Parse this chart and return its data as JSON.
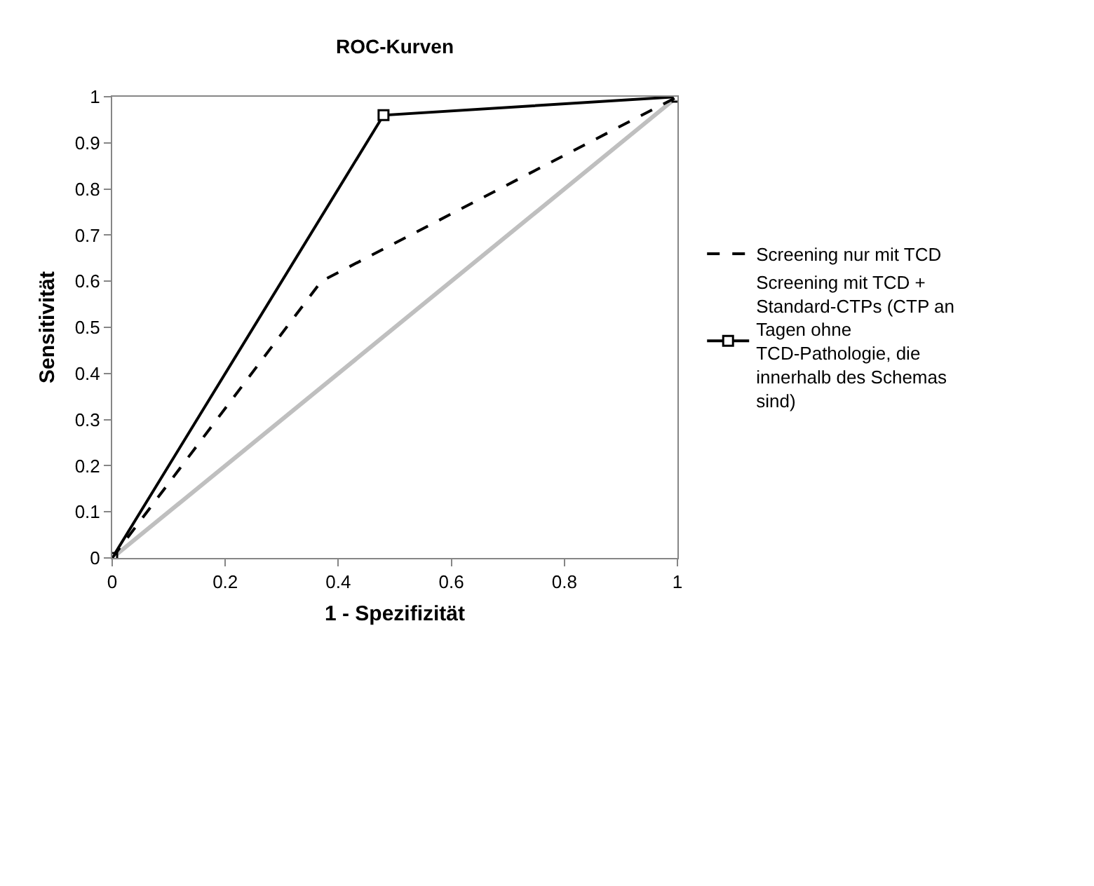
{
  "chart_data": {
    "type": "line",
    "title": "ROC-Kurven",
    "xlabel": "1 - Spezifizität",
    "ylabel": "Sensitivität",
    "xlim": [
      0,
      1
    ],
    "xticks": [
      0,
      0.2,
      0.4,
      0.6,
      0.8,
      1
    ],
    "ylim": [
      0,
      1
    ],
    "yticks": [
      0,
      0.1,
      0.2,
      0.3,
      0.4,
      0.5,
      0.6,
      0.7,
      0.8,
      0.9,
      1
    ],
    "grid": false,
    "legend": "right",
    "series": [
      {
        "color": "#bfbfbf",
        "x": [
          0,
          1
        ],
        "values": [
          0,
          1
        ],
        "line_style": "solid",
        "marker": "none"
      },
      {
        "name": "Screening mit TCD + Standard-CTPs (CTP an Tagen ohne TCD-Pathologie, die innerhalb des Schemas sind)",
        "color": "#000000",
        "x": [
          0,
          0.48,
          1
        ],
        "values": [
          0,
          0.96,
          1
        ],
        "line_style": "solid",
        "marker": "square"
      },
      {
        "name": "Screening nur mit TCD",
        "color": "#000000",
        "x": [
          0,
          0.37,
          1
        ],
        "values": [
          0,
          0.6,
          1
        ],
        "line_style": "dashed",
        "marker": "none"
      }
    ]
  }
}
